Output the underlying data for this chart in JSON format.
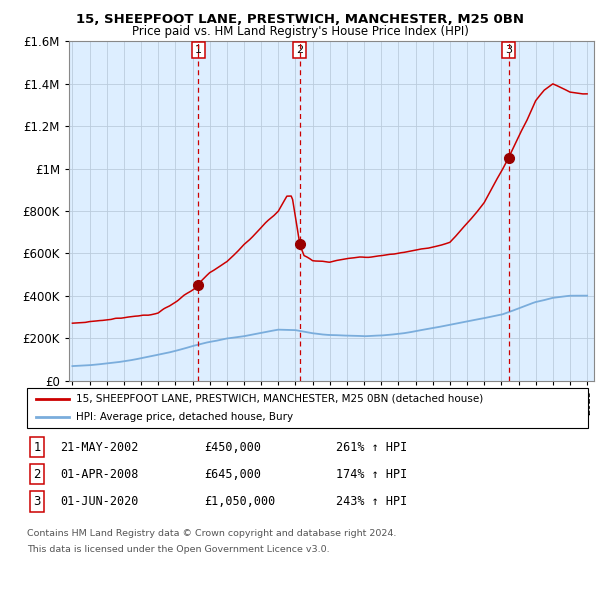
{
  "title1": "15, SHEEPFOOT LANE, PRESTWICH, MANCHESTER, M25 0BN",
  "title2": "Price paid vs. HM Land Registry's House Price Index (HPI)",
  "legend_line1": "15, SHEEPFOOT LANE, PRESTWICH, MANCHESTER, M25 0BN (detached house)",
  "legend_line2": "HPI: Average price, detached house, Bury",
  "sale1_date": "21-MAY-2002",
  "sale1_price": 450000,
  "sale1_pct": "261%",
  "sale2_date": "01-APR-2008",
  "sale2_price": 645000,
  "sale2_pct": "174%",
  "sale3_date": "01-JUN-2020",
  "sale3_price": 1050000,
  "sale3_pct": "243%",
  "footnote1": "Contains HM Land Registry data © Crown copyright and database right 2024.",
  "footnote2": "This data is licensed under the Open Government Licence v3.0.",
  "hpi_color": "#7aaddc",
  "price_color": "#cc0000",
  "bg_color": "#ddeeff",
  "sale_marker_color": "#990000",
  "vline_color": "#cc0000",
  "grid_color": "#bbccdd",
  "ylim_max": 1600000
}
